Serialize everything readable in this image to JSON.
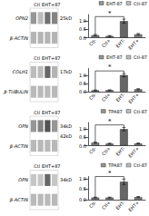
{
  "chart_data": [
    {
      "type": "heatmap",
      "rows": [
        "OPN2",
        "β-ACTIN"
      ],
      "x_groups": [
        "Ctl",
        "EHT+87"
      ],
      "annotations": [
        {
          "text": "25kD",
          "row": "OPN2"
        }
      ],
      "cells": [
        [
          0.55,
          0.35,
          0.75,
          0.65
        ],
        [
          0.45,
          0.45,
          0.45,
          0.45
        ]
      ]
    },
    {
      "type": "bar",
      "categories": [
        "Ctl-",
        "Ctl+",
        "EHT-",
        "EHT+"
      ],
      "values": [
        0.15,
        0.1,
        1.0,
        0.2
      ],
      "error_bars": [
        0.04,
        0.03,
        0.12,
        0.05
      ],
      "colors": [
        "#888888",
        "#888888",
        "#666666",
        "#888888"
      ],
      "ylim": [
        0,
        1.4
      ],
      "yticks": [
        {
          "value": 0,
          "label": "0.0"
        },
        0.5,
        {
          "value": 1,
          "label": "1.0"
        }
      ],
      "grid": false,
      "annotations": [
        {
          "text": "*",
          "between": [
            "Ctl-",
            "EHT-"
          ]
        }
      ],
      "legend": "upper right",
      "legend_entries": [
        {
          "name": "EHT-87",
          "color": "#777777"
        },
        {
          "name": "Ctl-87",
          "color": "#aaaaaa"
        }
      ]
    },
    {
      "type": "heatmap",
      "rows": [
        "COLH1",
        "β-TUBULIN"
      ],
      "x_groups": [
        "Ctl",
        "EHT+87"
      ],
      "annotations": [
        {
          "text": "17kD",
          "row": "COLH1"
        }
      ],
      "cells": [
        [
          0.35,
          0.35,
          0.8,
          0.4
        ],
        [
          0.42,
          0.42,
          0.42,
          0.42
        ]
      ]
    },
    {
      "type": "bar",
      "categories": [
        "Ctl-",
        "Ctl+",
        "EHT-",
        "EHT+"
      ],
      "values": [
        0.08,
        0.09,
        1.0,
        0.14
      ],
      "error_bars": [
        0.02,
        0.02,
        0.1,
        0.04
      ],
      "colors": [
        "#888888",
        "#888888",
        "#666666",
        "#888888"
      ],
      "ylim": [
        0,
        1.4
      ],
      "yticks": [
        {
          "value": 0,
          "label": "0.0"
        },
        0.5,
        {
          "value": 1,
          "label": "1.0"
        }
      ],
      "grid": false,
      "annotations": [
        {
          "text": "*",
          "between": [
            "Ctl-",
            "EHT-"
          ]
        }
      ],
      "legend": "upper right",
      "legend_entries": [
        {
          "name": "EHT-87",
          "color": "#777777"
        },
        {
          "name": "Ctl-87",
          "color": "#aaaaaa"
        }
      ]
    },
    {
      "type": "heatmap",
      "rows": [
        "OPN",
        "β-ACTIN"
      ],
      "x_groups": [
        "Ctl",
        "EHT+87"
      ],
      "annotations": [
        {
          "text": "34kD",
          "row": "OPN"
        },
        {
          "text": "42kD",
          "below": "OPN"
        }
      ],
      "cells": [
        [
          0.55,
          0.65,
          0.9,
          0.55
        ],
        [
          0.42,
          0.42,
          0.42,
          0.42
        ]
      ]
    },
    {
      "type": "bar",
      "categories": [
        "Ctl-",
        "Ctl+",
        "EHT-",
        "EHT+"
      ],
      "values": [
        0.18,
        0.12,
        1.0,
        0.13
      ],
      "error_bars": [
        0.04,
        0.03,
        0.1,
        0.03
      ],
      "colors": [
        "#888888",
        "#888888",
        "#666666",
        "#888888"
      ],
      "ylim": [
        0,
        1.4
      ],
      "yticks": [
        {
          "value": 0,
          "label": "0.0"
        },
        0.5,
        {
          "value": 1,
          "label": "1.0"
        }
      ],
      "grid": false,
      "annotations": [
        {
          "text": "*",
          "between": [
            "Ctl-",
            "EHT-"
          ]
        }
      ],
      "legend": "upper right",
      "legend_entries": [
        {
          "name": "TPA87",
          "color": "#777777"
        },
        {
          "name": "Ctl-87",
          "color": "#aaaaaa"
        }
      ]
    },
    {
      "type": "heatmap",
      "rows": [
        "OPN",
        "β-ACTIN"
      ],
      "x_groups": [
        "Ctl",
        "EHT+87"
      ],
      "annotations": [
        {
          "text": "34kD",
          "row": "OPN"
        }
      ],
      "cells": [
        [
          0.3,
          0.3,
          0.8,
          0.3
        ],
        [
          0.42,
          0.42,
          0.42,
          0.42
        ]
      ]
    },
    {
      "type": "bar",
      "categories": [
        "Ctl-",
        "Ctl+",
        "EHT-",
        "EHT+"
      ],
      "values": [
        0.1,
        0.1,
        0.85,
        0.12
      ],
      "error_bars": [
        0.02,
        0.02,
        0.13,
        0.03
      ],
      "colors": [
        "#888888",
        "#888888",
        "#666666",
        "#888888"
      ],
      "ylim": [
        0,
        1.1
      ],
      "yticks": [
        {
          "value": 0,
          "label": "0.0"
        },
        0.5,
        {
          "value": 1,
          "label": "1.0"
        }
      ],
      "grid": false,
      "annotations": [
        {
          "text": "*",
          "between": [
            "Ctl-",
            "EHT-"
          ]
        }
      ],
      "legend": "upper right",
      "legend_entries": [
        {
          "name": "TPA87",
          "color": "#777777"
        },
        {
          "name": "Ctl-87",
          "color": "#aaaaaa"
        }
      ]
    }
  ]
}
